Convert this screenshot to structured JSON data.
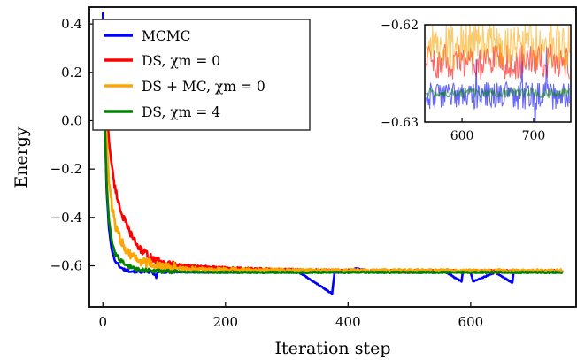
{
  "chart_data": [
    {
      "type": "line",
      "xlabel": "Iteration step",
      "ylabel": "Energy",
      "xlim": [
        -22,
        772
      ],
      "ylim": [
        -0.77,
        0.47
      ],
      "xticks": [
        0,
        200,
        400,
        600
      ],
      "xtick_labels": [
        "0",
        "200",
        "400",
        "600"
      ],
      "yticks": [
        0.4,
        0.2,
        0.0,
        -0.2,
        -0.4,
        -0.6
      ],
      "ytick_labels": [
        "0.4",
        "0.2",
        "0.0",
        "−0.2",
        "−0.4",
        "−0.6"
      ],
      "legend_position": "top-left",
      "grid": false,
      "series": [
        {
          "name": "MCMC",
          "color": "#0000ff",
          "x": [
            0,
            3,
            6,
            10,
            15,
            20,
            30,
            40,
            60,
            80,
            87,
            90,
            120,
            160,
            200,
            260,
            320,
            374,
            376,
            378,
            400,
            414,
            440,
            500,
            560,
            585,
            587,
            600,
            604,
            640,
            668,
            670,
            700,
            740,
            750
          ],
          "y": [
            0.45,
            0.05,
            -0.28,
            -0.45,
            -0.54,
            -0.58,
            -0.61,
            -0.62,
            -0.625,
            -0.625,
            -0.645,
            -0.625,
            -0.626,
            -0.627,
            -0.627,
            -0.627,
            -0.627,
            -0.715,
            -0.67,
            -0.627,
            -0.627,
            -0.61,
            -0.627,
            -0.627,
            -0.627,
            -0.665,
            -0.627,
            -0.627,
            -0.665,
            -0.627,
            -0.67,
            -0.627,
            -0.627,
            -0.627,
            -0.627
          ]
        },
        {
          "name": "DS, χm = 0",
          "color": "#ff0000",
          "x": [
            0,
            5,
            10,
            15,
            20,
            30,
            40,
            50,
            60,
            80,
            100,
            130,
            160,
            200,
            250,
            300,
            350,
            400,
            450,
            500,
            550,
            600,
            650,
            700,
            750
          ],
          "y": [
            0.4,
            0.1,
            -0.08,
            -0.2,
            -0.28,
            -0.38,
            -0.44,
            -0.49,
            -0.53,
            -0.57,
            -0.59,
            -0.6,
            -0.605,
            -0.61,
            -0.615,
            -0.618,
            -0.62,
            -0.621,
            -0.622,
            -0.623,
            -0.623,
            -0.623,
            -0.623,
            -0.623,
            -0.623
          ]
        },
        {
          "name": "DS + MC, χm = 0",
          "color": "#ffa500",
          "x": [
            0,
            5,
            10,
            15,
            20,
            30,
            40,
            50,
            60,
            80,
            100,
            130,
            160,
            200,
            250,
            300,
            400,
            500,
            600,
            700,
            750
          ],
          "y": [
            0.35,
            -0.05,
            -0.25,
            -0.36,
            -0.43,
            -0.5,
            -0.54,
            -0.56,
            -0.58,
            -0.595,
            -0.605,
            -0.61,
            -0.613,
            -0.616,
            -0.618,
            -0.62,
            -0.621,
            -0.621,
            -0.622,
            -0.622,
            -0.622
          ]
        },
        {
          "name": "DS, χm = 4",
          "color": "#008000",
          "x": [
            0,
            3,
            6,
            10,
            15,
            20,
            30,
            40,
            50,
            60,
            80,
            100,
            150,
            200,
            300,
            400,
            500,
            600,
            700,
            750
          ],
          "y": [
            0.3,
            0.0,
            -0.25,
            -0.42,
            -0.5,
            -0.55,
            -0.58,
            -0.6,
            -0.61,
            -0.615,
            -0.62,
            -0.623,
            -0.626,
            -0.627,
            -0.627,
            -0.627,
            -0.627,
            -0.627,
            -0.627,
            -0.627
          ]
        }
      ]
    },
    {
      "type": "line",
      "inset": true,
      "xlim": [
        548,
        752
      ],
      "ylim": [
        -0.63,
        -0.62
      ],
      "xticks": [
        600,
        700
      ],
      "xtick_labels": [
        "600",
        "700"
      ],
      "yticks": [
        -0.62,
        -0.63
      ],
      "ytick_labels": [
        "−0.62",
        "−0.63"
      ],
      "series": [
        {
          "name": "MCMC",
          "color": "#0000ff",
          "center": -0.6273,
          "amplitude": 0.0014
        },
        {
          "name": "DS, χm = 0",
          "color": "#ff0000",
          "center": -0.6238,
          "amplitude": 0.0018
        },
        {
          "name": "DS + MC, χm = 0",
          "color": "#ffa500",
          "center": -0.6222,
          "amplitude": 0.0024
        },
        {
          "name": "DS, χm = 4",
          "color": "#008000",
          "center": -0.627,
          "amplitude": 0.0005
        }
      ]
    }
  ],
  "legend": [
    {
      "label": "MCMC",
      "color": "#0000ff"
    },
    {
      "label": "DS, χm = 0",
      "color": "#ff0000"
    },
    {
      "label": "DS + MC, χm = 0",
      "color": "#ffa500"
    },
    {
      "label": "DS, χm = 4",
      "color": "#008000"
    }
  ]
}
